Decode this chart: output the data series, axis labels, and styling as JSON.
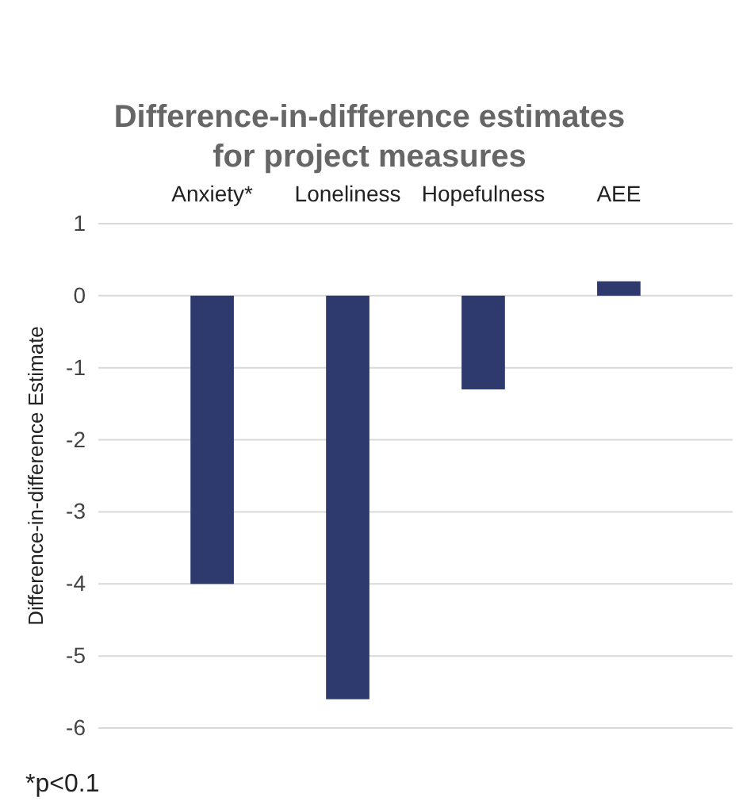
{
  "chart_data": {
    "type": "bar",
    "title": "Difference-in-difference estimates for project measures",
    "ylabel": "Difference-in-difference Estimate",
    "categories": [
      "Anxiety*",
      "Loneliness",
      "Hopefulness",
      "AEE"
    ],
    "values": [
      -4.0,
      -5.6,
      -1.3,
      0.2
    ],
    "color": "#2e3a6e",
    "ylim": [
      -6,
      1
    ],
    "yticks": [
      -6,
      -5,
      -4,
      -3,
      -2,
      -1,
      0,
      1
    ],
    "grid": "y",
    "annotations": [
      "*p<0.1"
    ]
  }
}
